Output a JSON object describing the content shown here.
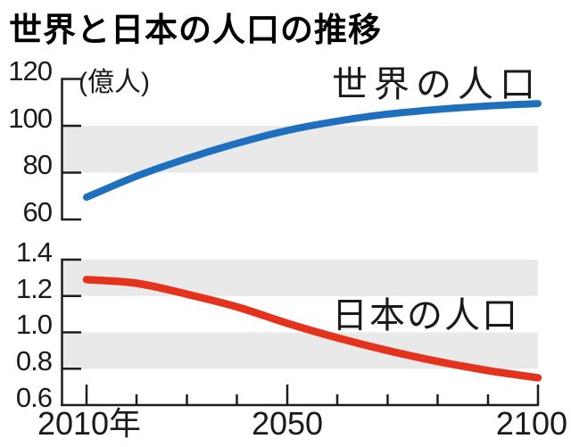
{
  "title": "世界と日本の人口の推移",
  "colors": {
    "world_line": "#1e70bf",
    "japan_line": "#e5321c",
    "shaded_band": "#e9e9e9",
    "axis_and_text": "#1a1a1a"
  },
  "x_axis": {
    "tick_years": [
      2010,
      2020,
      2030,
      2040,
      2050,
      2060,
      2070,
      2080,
      2090,
      2100
    ],
    "labels": [
      "2010年",
      "2050",
      "2100"
    ]
  },
  "chart_data": [
    {
      "type": "line",
      "title": "世界の人口",
      "unit": "(億人)",
      "x": [
        2010,
        2020,
        2030,
        2040,
        2050,
        2060,
        2070,
        2080,
        2090,
        2100
      ],
      "series": [
        {
          "name": "世界の人口",
          "color": "#1e70bf",
          "values": [
            69.5,
            78.5,
            86,
            92.5,
            98,
            102,
            105,
            107,
            108.5,
            109.5
          ]
        }
      ],
      "ylim": [
        60,
        120
      ],
      "ytick_labels": [
        "120",
        "100",
        "80",
        "60"
      ],
      "shaded_bands": [
        [
          80,
          100
        ]
      ],
      "grid": false,
      "legend_position": "inline-top-right"
    },
    {
      "type": "line",
      "title": "日本の人口",
      "x": [
        2010,
        2020,
        2030,
        2040,
        2050,
        2060,
        2070,
        2080,
        2090,
        2100
      ],
      "series": [
        {
          "name": "日本の人口",
          "color": "#e5321c",
          "values": [
            1.29,
            1.27,
            1.21,
            1.14,
            1.05,
            0.97,
            0.9,
            0.84,
            0.79,
            0.75
          ]
        }
      ],
      "ylim": [
        0.6,
        1.4
      ],
      "ytick_labels": [
        "1.4",
        "1.2",
        "1.0",
        "0.8",
        "0.6"
      ],
      "xtick_labels": [
        "2010年",
        "2050",
        "2100"
      ],
      "shaded_bands": [
        [
          1.2,
          1.4
        ],
        [
          0.8,
          1.0
        ]
      ],
      "grid": false,
      "legend_position": "inline-middle-right"
    }
  ]
}
